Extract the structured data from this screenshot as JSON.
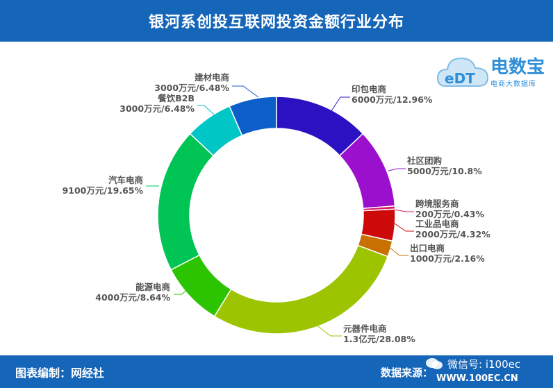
{
  "header": {
    "title": "银河系创投互联网投资金额行业分布"
  },
  "footer": {
    "left": "图表编制：网经社",
    "right_label": "数据来源：",
    "right_site": "WWW.100EC.CN",
    "wechat": "微信号: i100ec"
  },
  "logo": {
    "mark": "eDT",
    "name": "电数宝",
    "subtitle": "电商大数据库"
  },
  "chart_data": {
    "type": "pie",
    "donut": true,
    "categories": [
      "印包电商",
      "社区团购",
      "跨境服务商",
      "工业品电商",
      "出口电商",
      "元器件电商",
      "能源电商",
      "汽车电商",
      "餐饮B2B",
      "建材电商"
    ],
    "values": [
      12.96,
      10.8,
      0.43,
      4.32,
      2.16,
      28.08,
      8.64,
      19.65,
      6.48,
      6.48
    ],
    "amounts": [
      "6000万元",
      "5000万元",
      "200万元",
      "2000万元",
      "1000万元",
      "1.3亿元",
      "4000万元",
      "9100万元",
      "3000万元",
      "3000万元"
    ],
    "value_labels": [
      "6000万元/12.96%",
      "5000万元/10.8%",
      "200万元/0.43%",
      "2000万元/4.32%",
      "1000万元/2.16%",
      "1.3亿元/28.08%",
      "4000万元/8.64%",
      "9100万元/19.65%",
      "3000万元/6.48%",
      "3000万元/6.48%"
    ],
    "colors": [
      "#2a12c2",
      "#9a10cc",
      "#d6196a",
      "#cc0a0a",
      "#c87000",
      "#9cc400",
      "#2cc400",
      "#00c454",
      "#00c6c6",
      "#0c5ec8"
    ],
    "legend": "none"
  }
}
